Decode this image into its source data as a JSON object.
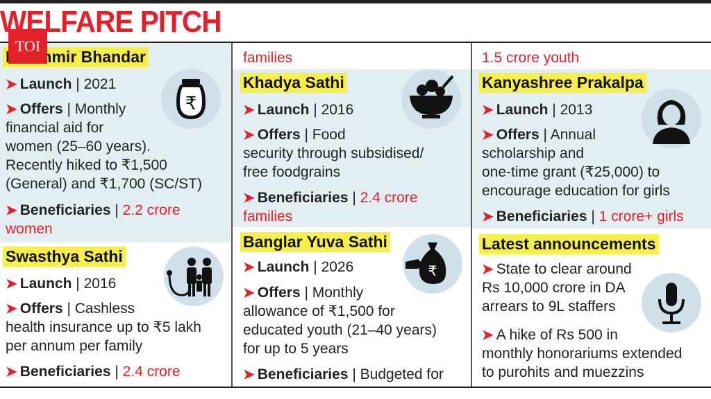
{
  "title": "WELFARE PITCH",
  "logo": "TOI",
  "columns": [
    {
      "top_continuation": "",
      "schemes": [
        {
          "name": "Lakshmir Bhandar",
          "icon": "rupee-pot-icon",
          "launch_label": "Launch",
          "launch": "| 2021",
          "offers_label": "Offers",
          "offers_lines": [
            "| Monthly",
            "financial aid for",
            "women (25–60 years).",
            "Recently hiked to ₹1,500",
            "(General) and ₹1,700 (SC/ST)"
          ],
          "beneficiaries_label": "Beneficiaries",
          "beneficiaries_lines": [
            "2.2 crore",
            "women"
          ]
        },
        {
          "name": "Swasthya Sathi",
          "icon": "family-stethoscope-icon",
          "launch_label": "Launch",
          "launch": "| 2016",
          "offers_label": "Offers",
          "offers_lines": [
            "| Cashless",
            "health insurance up to ₹5 lakh",
            "per annum per family"
          ],
          "beneficiaries_label": "Beneficiaries",
          "beneficiaries_lines": [
            "2.4 crore"
          ]
        }
      ]
    },
    {
      "top_continuation": "families",
      "schemes": [
        {
          "name": "Khadya Sathi",
          "icon": "food-bowl-icon",
          "launch_label": "Launch",
          "launch": "| 2016",
          "offers_label": "Offers",
          "offers_lines": [
            "| Food",
            "security through subsidised/",
            "free foodgrains"
          ],
          "beneficiaries_label": "Beneficiaries",
          "beneficiaries_lines": [
            "2.4 crore",
            "families"
          ]
        },
        {
          "name": "Banglar Yuva Sathi",
          "icon": "money-bag-hand-icon",
          "launch_label": "Launch",
          "launch": "| 2026",
          "offers_label": "Offers",
          "offers_lines": [
            "| Monthly",
            "allowance of ₹1,500 for",
            "educated youth (21–40 years)",
            "for up to 5 years"
          ],
          "beneficiaries_label": "Beneficiaries",
          "beneficiaries_lines": [
            "| Budgeted for"
          ]
        }
      ]
    },
    {
      "top_continuation": "1.5 crore youth",
      "schemes": [
        {
          "name": "Kanyashree Prakalpa",
          "icon": "girl-avatar-icon",
          "launch_label": "Launch",
          "launch": "| 2013",
          "offers_label": "Offers",
          "offers_lines": [
            "| Annual",
            "scholarship and",
            "one-time grant (₹25,000) to",
            "encourage education for girls"
          ],
          "beneficiaries_label": "Beneficiaries",
          "beneficiaries_lines": [
            "1 crore+ girls"
          ]
        }
      ],
      "announcements": {
        "heading": "Latest announcements",
        "icon": "microphone-icon",
        "items": [
          [
            "State to clear around",
            "Rs 10,000 crore in DA",
            "arrears to 9L staffers"
          ],
          [
            "A hike of Rs 500 in",
            "monthly honorariums extended",
            "to purohits and muezzins"
          ]
        ]
      }
    }
  ],
  "colors": {
    "accent": "#e4202b",
    "highlight": "#f6ee4a",
    "panel": "#e3eef3"
  }
}
